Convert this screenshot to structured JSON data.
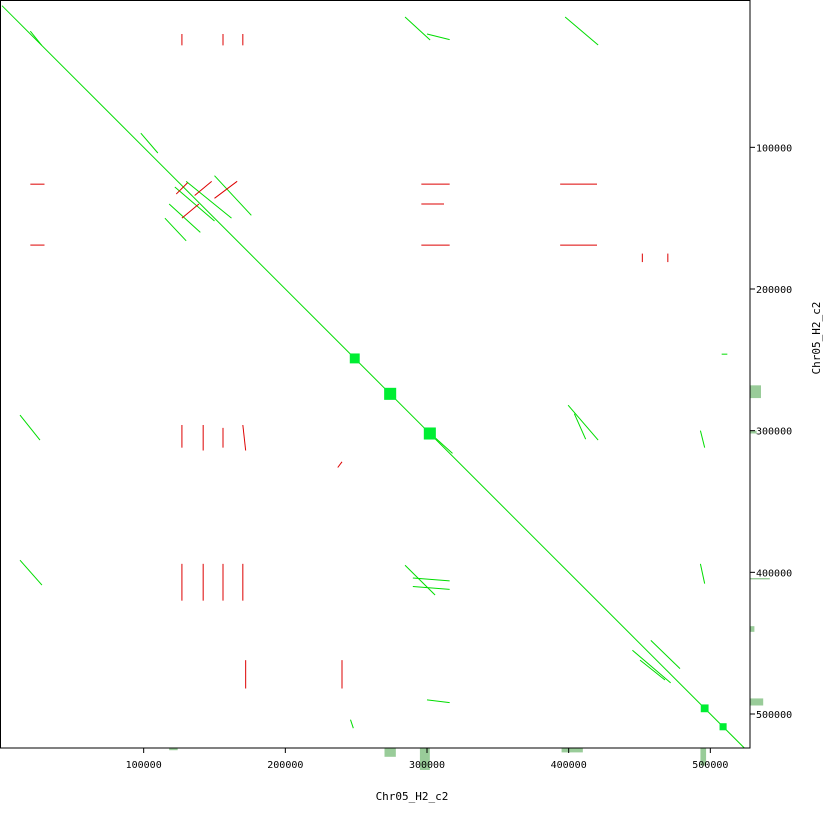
{
  "chart_data": {
    "type": "dotplot",
    "xlabel": "Chr05_H2_c2",
    "ylabel": "Chr05_H2_c2",
    "xlim": [
      0,
      528000
    ],
    "ylim": [
      -4000,
      524000
    ],
    "xticks": [
      100000,
      200000,
      300000,
      400000,
      500000
    ],
    "yticks": [
      100000,
      200000,
      300000,
      400000,
      500000
    ],
    "forward": {
      "color": "#00dd00",
      "segments": [
        [
          0,
          0,
          524000,
          524000
        ],
        [
          284500,
          8000,
          302200,
          24200
        ],
        [
          397500,
          8000,
          420800,
          27800
        ],
        [
          300000,
          20000,
          316000,
          24000
        ],
        [
          12700,
          289000,
          26800,
          306600
        ],
        [
          399600,
          282000,
          420800,
          306600
        ],
        [
          404000,
          288000,
          412000,
          306000
        ],
        [
          284500,
          395000,
          305700,
          416000
        ],
        [
          290000,
          404000,
          316000,
          406000
        ],
        [
          290000,
          410000,
          316000,
          412000
        ],
        [
          12700,
          391400,
          28200,
          409000
        ],
        [
          450400,
          462000,
          468000,
          476000
        ],
        [
          458000,
          448000,
          478600,
          468000
        ],
        [
          445000,
          455000,
          472000,
          478000
        ],
        [
          118000,
          140000,
          140000,
          160000
        ],
        [
          122000,
          128000,
          150000,
          152000
        ],
        [
          130000,
          124000,
          162000,
          150000
        ],
        [
          115000,
          150000,
          130000,
          166000
        ],
        [
          150000,
          120000,
          176000,
          148000
        ],
        [
          20000,
          18000,
          28000,
          28000
        ],
        [
          98000,
          90000,
          110000,
          104000
        ],
        [
          298000,
          298000,
          318000,
          316000
        ],
        [
          493000,
          300000,
          496000,
          312000
        ],
        [
          493000,
          394000,
          496000,
          408000
        ],
        [
          300000,
          490000,
          316000,
          492000
        ],
        [
          246000,
          504000,
          248000,
          510000
        ],
        [
          508000,
          246000,
          512000,
          246000
        ]
      ]
    },
    "reverse": {
      "color": "#dd0000",
      "segments": [
        [
          123000,
          133000,
          131000,
          125000
        ],
        [
          136000,
          134000,
          148000,
          124000
        ],
        [
          150000,
          136000,
          166000,
          124000
        ],
        [
          127000,
          150000,
          139000,
          140000
        ],
        [
          296000,
          169000,
          316000,
          169000
        ],
        [
          296000,
          126000,
          316000,
          126000
        ],
        [
          296000,
          140000,
          312000,
          140000
        ],
        [
          394000,
          126000,
          420000,
          126000
        ],
        [
          394000,
          169000,
          420000,
          169000
        ],
        [
          20000,
          126000,
          30000,
          126000
        ],
        [
          20000,
          169000,
          30000,
          169000
        ],
        [
          127000,
          296000,
          127000,
          312000
        ],
        [
          142000,
          296000,
          142000,
          314000
        ],
        [
          156000,
          298000,
          156000,
          312000
        ],
        [
          170000,
          296000,
          172000,
          314000
        ],
        [
          127000,
          394000,
          127000,
          420000
        ],
        [
          142000,
          394000,
          142000,
          420000
        ],
        [
          156000,
          394000,
          156000,
          420000
        ],
        [
          170000,
          394000,
          170000,
          420000
        ],
        [
          127000,
          20000,
          127000,
          28000
        ],
        [
          156000,
          20000,
          156000,
          28000
        ],
        [
          170000,
          20000,
          170000,
          28000
        ],
        [
          237000,
          326000,
          240000,
          322000
        ],
        [
          452000,
          175000,
          452000,
          181000
        ],
        [
          470000,
          175000,
          470000,
          181000
        ],
        [
          172000,
          462000,
          172000,
          482000
        ],
        [
          240000,
          462000,
          240000,
          482000
        ]
      ]
    },
    "blocks": {
      "color": "#00ee33",
      "squares": [
        [
          249000,
          249000,
          7000
        ],
        [
          274000,
          274000,
          8500
        ],
        [
          302000,
          302000,
          8500
        ],
        [
          496000,
          496000,
          5500
        ],
        [
          509000,
          509000,
          5000
        ]
      ]
    },
    "coverage": {
      "color": "#99cc99",
      "lim": [
        0,
        10
      ],
      "x_bars": [
        [
          270000,
          278000,
          4
        ],
        [
          295000,
          302000,
          10
        ],
        [
          395000,
          410000,
          2
        ],
        [
          493000,
          497000,
          8
        ],
        [
          118000,
          124000,
          1
        ]
      ],
      "y_bars": [
        [
          268000,
          277000,
          5
        ],
        [
          300000,
          302000,
          3
        ],
        [
          404000,
          405000,
          9
        ],
        [
          489000,
          494000,
          6
        ],
        [
          438000,
          442000,
          2
        ]
      ]
    }
  }
}
